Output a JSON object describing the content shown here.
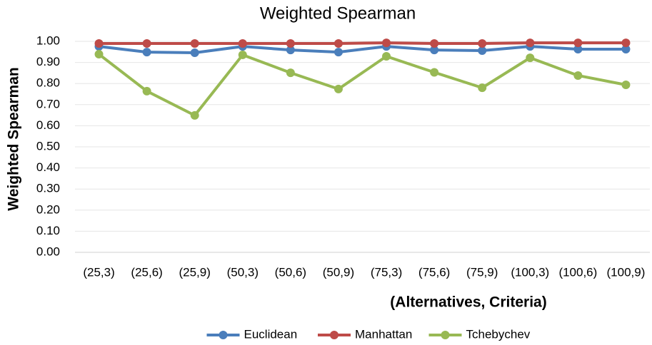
{
  "chart_data": {
    "type": "line",
    "title": "Weighted Spearman",
    "y_label": "Weighted Spearman",
    "x_label": "(Alternatives, Criteria)",
    "categories": [
      "(25,3)",
      "(25,6)",
      "(25,9)",
      "(50,3)",
      "(50,6)",
      "(50,9)",
      "(75,3)",
      "(75,6)",
      "(75,9)",
      "(100,3)",
      "(100,6)",
      "(100,9)"
    ],
    "series": [
      {
        "name": "Euclidean",
        "color": "#4a7ebb",
        "values": [
          0.976,
          0.949,
          0.946,
          0.976,
          0.959,
          0.949,
          0.976,
          0.959,
          0.956,
          0.976,
          0.963,
          0.963
        ]
      },
      {
        "name": "Manhattan",
        "color": "#be4b48",
        "values": [
          0.99,
          0.99,
          0.99,
          0.99,
          0.99,
          0.99,
          0.993,
          0.99,
          0.99,
          0.993,
          0.993,
          0.993
        ]
      },
      {
        "name": "Tchebychev",
        "color": "#98b954",
        "values": [
          0.939,
          0.764,
          0.649,
          0.936,
          0.851,
          0.774,
          0.929,
          0.853,
          0.78,
          0.922,
          0.838,
          0.794
        ]
      }
    ],
    "ylim": [
      0,
      1
    ],
    "yticks": [
      {
        "value": 0,
        "label": "0.00"
      },
      {
        "value": 0.1,
        "label": "0.10"
      },
      {
        "value": 0.2,
        "label": "0.20"
      },
      {
        "value": 0.3,
        "label": "0.30"
      },
      {
        "value": 0.4,
        "label": "0.40"
      },
      {
        "value": 0.5,
        "label": "0.50"
      },
      {
        "value": 0.6,
        "label": "0.60"
      },
      {
        "value": 0.7,
        "label": "0.70"
      },
      {
        "value": 0.8,
        "label": "0.80"
      },
      {
        "value": 0.9,
        "label": "0.90"
      },
      {
        "value": 1,
        "label": "1.00"
      }
    ],
    "grid": true,
    "legend": "bottom"
  }
}
